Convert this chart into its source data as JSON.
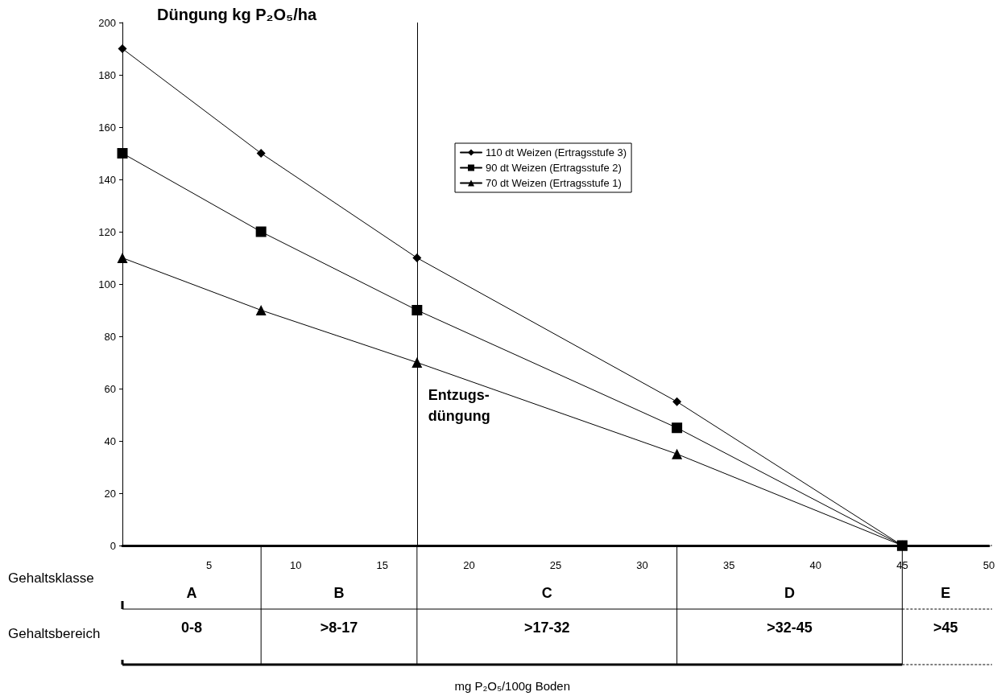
{
  "chart_data": {
    "type": "line",
    "title": "Düngung kg P₂O₅/ha",
    "x": [
      0,
      8,
      17,
      32,
      45
    ],
    "series": [
      {
        "name": "110 dt Weizen (Ertragsstufe 3)",
        "color": "#000000",
        "marker": "diamond",
        "values": [
          190,
          150,
          110,
          55,
          0
        ]
      },
      {
        "name": "90 dt Weizen (Ertragsstufe 2)",
        "color": "#000000",
        "marker": "square",
        "values": [
          150,
          120,
          90,
          45,
          0
        ]
      },
      {
        "name": "70 dt Weizen (Ertragsstufe 1)",
        "color": "#000000",
        "marker": "triangle",
        "values": [
          110,
          90,
          70,
          35,
          0
        ]
      }
    ],
    "xlim": [
      0,
      50
    ],
    "xticks": [
      {
        "value": 0,
        "label": null
      },
      5,
      10,
      15,
      20,
      25,
      30,
      35,
      40,
      45,
      50
    ],
    "ylim": [
      0,
      200
    ],
    "yticks": [
      0,
      20,
      40,
      60,
      80,
      100,
      120,
      140,
      160,
      180,
      200
    ],
    "grid": false,
    "legend": "top right",
    "line_style": "solid",
    "ref_lines": [
      {
        "axis": "x",
        "value": 17,
        "label": "Entzugs-\ndüngung"
      }
    ],
    "annotations": [
      "Gehaltsklasse",
      "A",
      "B",
      "C",
      "D",
      "E",
      "Gehaltsbereich",
      "0-8",
      ">8-17",
      ">17-32",
      ">32-45",
      ">45",
      "mg P₂O₅/100g Boden"
    ]
  }
}
